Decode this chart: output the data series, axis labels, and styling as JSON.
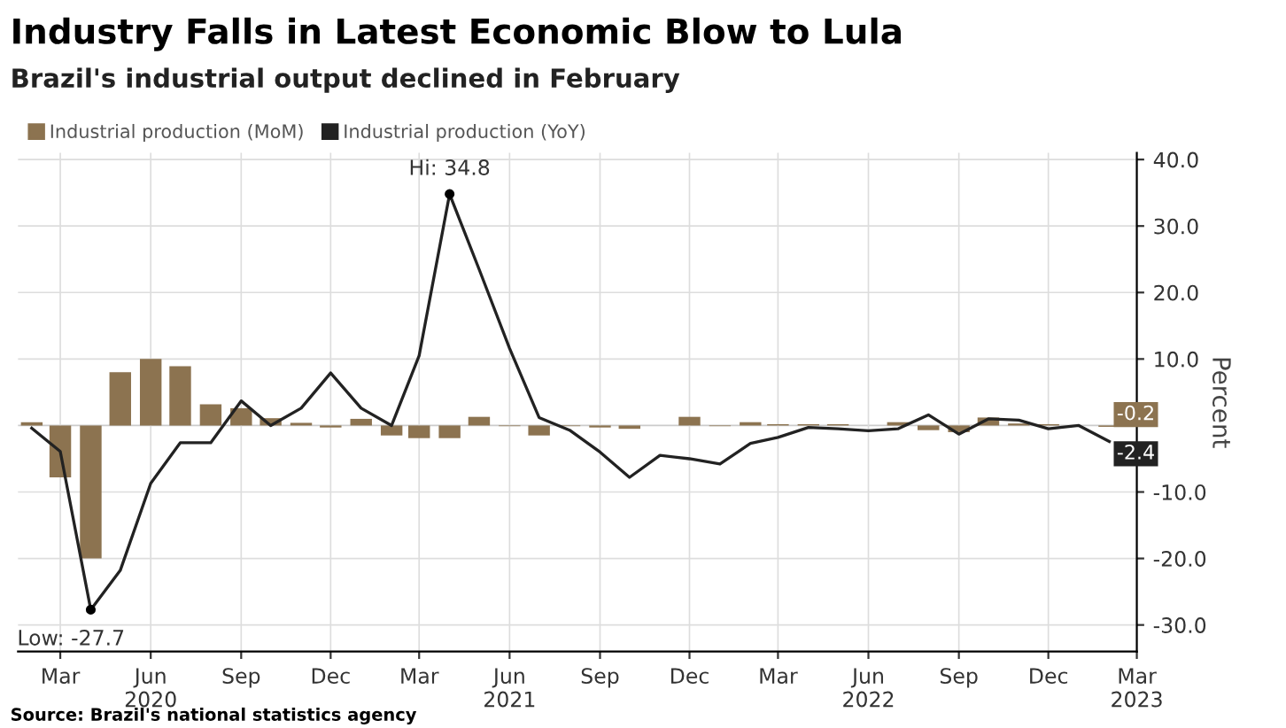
{
  "chart_data": {
    "type": "bar",
    "title": "Industry Falls in Latest Economic Blow to Lula",
    "subtitle": "Brazil's industrial output declined in February",
    "ylabel": "Percent",
    "x": [
      "2020-02",
      "2020-03",
      "2020-04",
      "2020-05",
      "2020-06",
      "2020-07",
      "2020-08",
      "2020-09",
      "2020-10",
      "2020-11",
      "2020-12",
      "2021-01",
      "2021-02",
      "2021-03",
      "2021-04",
      "2021-05",
      "2021-06",
      "2021-07",
      "2021-08",
      "2021-09",
      "2021-10",
      "2021-11",
      "2021-12",
      "2022-01",
      "2022-02",
      "2022-03",
      "2022-04",
      "2022-05",
      "2022-06",
      "2022-07",
      "2022-08",
      "2022-09",
      "2022-10",
      "2022-11",
      "2022-12",
      "2023-01",
      "2023-02"
    ],
    "series": [
      {
        "name": "Industrial production (MoM)",
        "color": "#8c7350",
        "values": [
          0.5,
          -7.8,
          -20.0,
          8.0,
          10.0,
          8.9,
          3.2,
          2.6,
          1.1,
          0.4,
          -0.3,
          1.0,
          -1.5,
          -1.9,
          -1.9,
          1.3,
          -0.1,
          -1.5,
          -0.1,
          -0.3,
          -0.5,
          0.0,
          1.3,
          -0.1,
          0.5,
          0.2,
          0.2,
          0.2,
          null,
          0.5,
          -0.7,
          -1.0,
          1.2,
          0.3,
          0.2,
          null,
          -0.2
        ]
      },
      {
        "name": "Industrial production (YoY)",
        "type": "line",
        "color": "#222222",
        "values": [
          -0.4,
          -3.9,
          -27.7,
          -21.8,
          -8.7,
          -2.6,
          -2.6,
          3.7,
          0.0,
          2.6,
          7.9,
          2.6,
          0.0,
          10.5,
          34.8,
          23.5,
          11.6,
          1.2,
          -0.7,
          -4.0,
          -7.8,
          -4.5,
          -5.0,
          -5.8,
          -2.7,
          -1.8,
          -0.3,
          -0.5,
          -0.8,
          -0.5,
          1.6,
          -1.3,
          1.0,
          0.8,
          -0.5,
          0.0,
          -2.4
        ]
      }
    ],
    "xlim": [
      "2020-01-18",
      "2023-03-01"
    ],
    "xticks": [
      {
        "value": "2020-03",
        "label": "Mar"
      },
      {
        "value": "2020-06",
        "label": "Jun\n2020"
      },
      {
        "value": "2020-09",
        "label": "Sep"
      },
      {
        "value": "2020-12",
        "label": "Dec"
      },
      {
        "value": "2021-03",
        "label": "Mar"
      },
      {
        "value": "2021-06",
        "label": "Jun\n2021"
      },
      {
        "value": "2021-09",
        "label": "Sep"
      },
      {
        "value": "2021-12",
        "label": "Dec"
      },
      {
        "value": "2022-03",
        "label": "Mar"
      },
      {
        "value": "2022-06",
        "label": "Jun\n2022"
      },
      {
        "value": "2022-09",
        "label": "Sep"
      },
      {
        "value": "2022-12",
        "label": "Dec"
      },
      {
        "value": "2023-03",
        "label": "Mar\n2023"
      }
    ],
    "ylim": [
      -34,
      41
    ],
    "yticks": [
      {
        "value": 40,
        "label": "40.0"
      },
      {
        "value": 30,
        "label": "30.0"
      },
      {
        "value": 20,
        "label": "20.0"
      },
      {
        "value": 10,
        "label": "10.0"
      },
      {
        "value": -10,
        "label": "-10.0"
      },
      {
        "value": -20,
        "label": "-20.0"
      },
      {
        "value": -30,
        "label": "-30.0"
      }
    ],
    "grid": true,
    "legend": "top left",
    "annotations": [
      {
        "text": "Hi: 34.8",
        "x": "2021-04",
        "y": 34.8
      },
      {
        "text": "Low: -27.7",
        "x": "2020-04",
        "y": -27.7
      },
      {
        "text": "-0.2",
        "x": "2023-02",
        "y": -0.2
      },
      {
        "text": "-2.4",
        "x": "2023-02",
        "y": -2.4
      },
      "Source: Brazil's national statistics agency"
    ]
  }
}
